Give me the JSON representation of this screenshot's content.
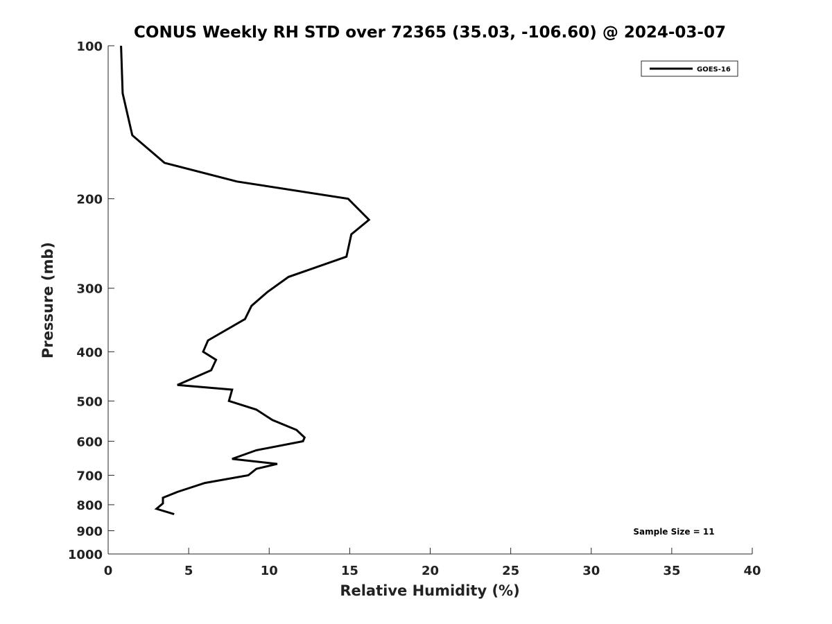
{
  "chart_data": {
    "type": "line",
    "title": "CONUS Weekly RH STD over 72365 (35.03, -106.60) @ 2024-03-07",
    "xlabel": "Relative Humidity (%)",
    "ylabel": "Pressure (mb)",
    "xlim": [
      0,
      40
    ],
    "ylim": [
      100,
      1000
    ],
    "y_scale": "log",
    "y_reversed": true,
    "grid": false,
    "legend_position": "top-right",
    "x_ticks": [
      "0",
      "5",
      "10",
      "15",
      "20",
      "25",
      "30",
      "35",
      "40"
    ],
    "y_ticks": [
      "100",
      "200",
      "300",
      "400",
      "500",
      "600",
      "700",
      "800",
      "900",
      "1000"
    ],
    "series": [
      {
        "name": "GOES-16",
        "color": "#000000",
        "x": [
          0.8,
          0.9,
          1.5,
          3.5,
          8.0,
          14.9,
          16.2,
          15.1,
          14.8,
          11.2,
          9.9,
          8.9,
          8.5,
          6.2,
          5.9,
          6.7,
          6.4,
          4.3,
          7.7,
          7.5,
          9.2,
          10.2,
          11.7,
          12.2,
          12.1,
          9.2,
          7.7,
          10.5,
          9.2,
          8.7,
          6.0,
          4.3,
          3.4,
          3.4,
          3.0,
          4.1
        ],
        "y": [
          100,
          124,
          150,
          170,
          185,
          200,
          220,
          235,
          260,
          285,
          305,
          325,
          345,
          380,
          400,
          415,
          435,
          465,
          475,
          500,
          520,
          545,
          570,
          590,
          600,
          625,
          650,
          665,
          680,
          700,
          725,
          755,
          775,
          795,
          815,
          835
        ]
      }
    ],
    "annotations": [
      "Sample Size = 11"
    ]
  }
}
